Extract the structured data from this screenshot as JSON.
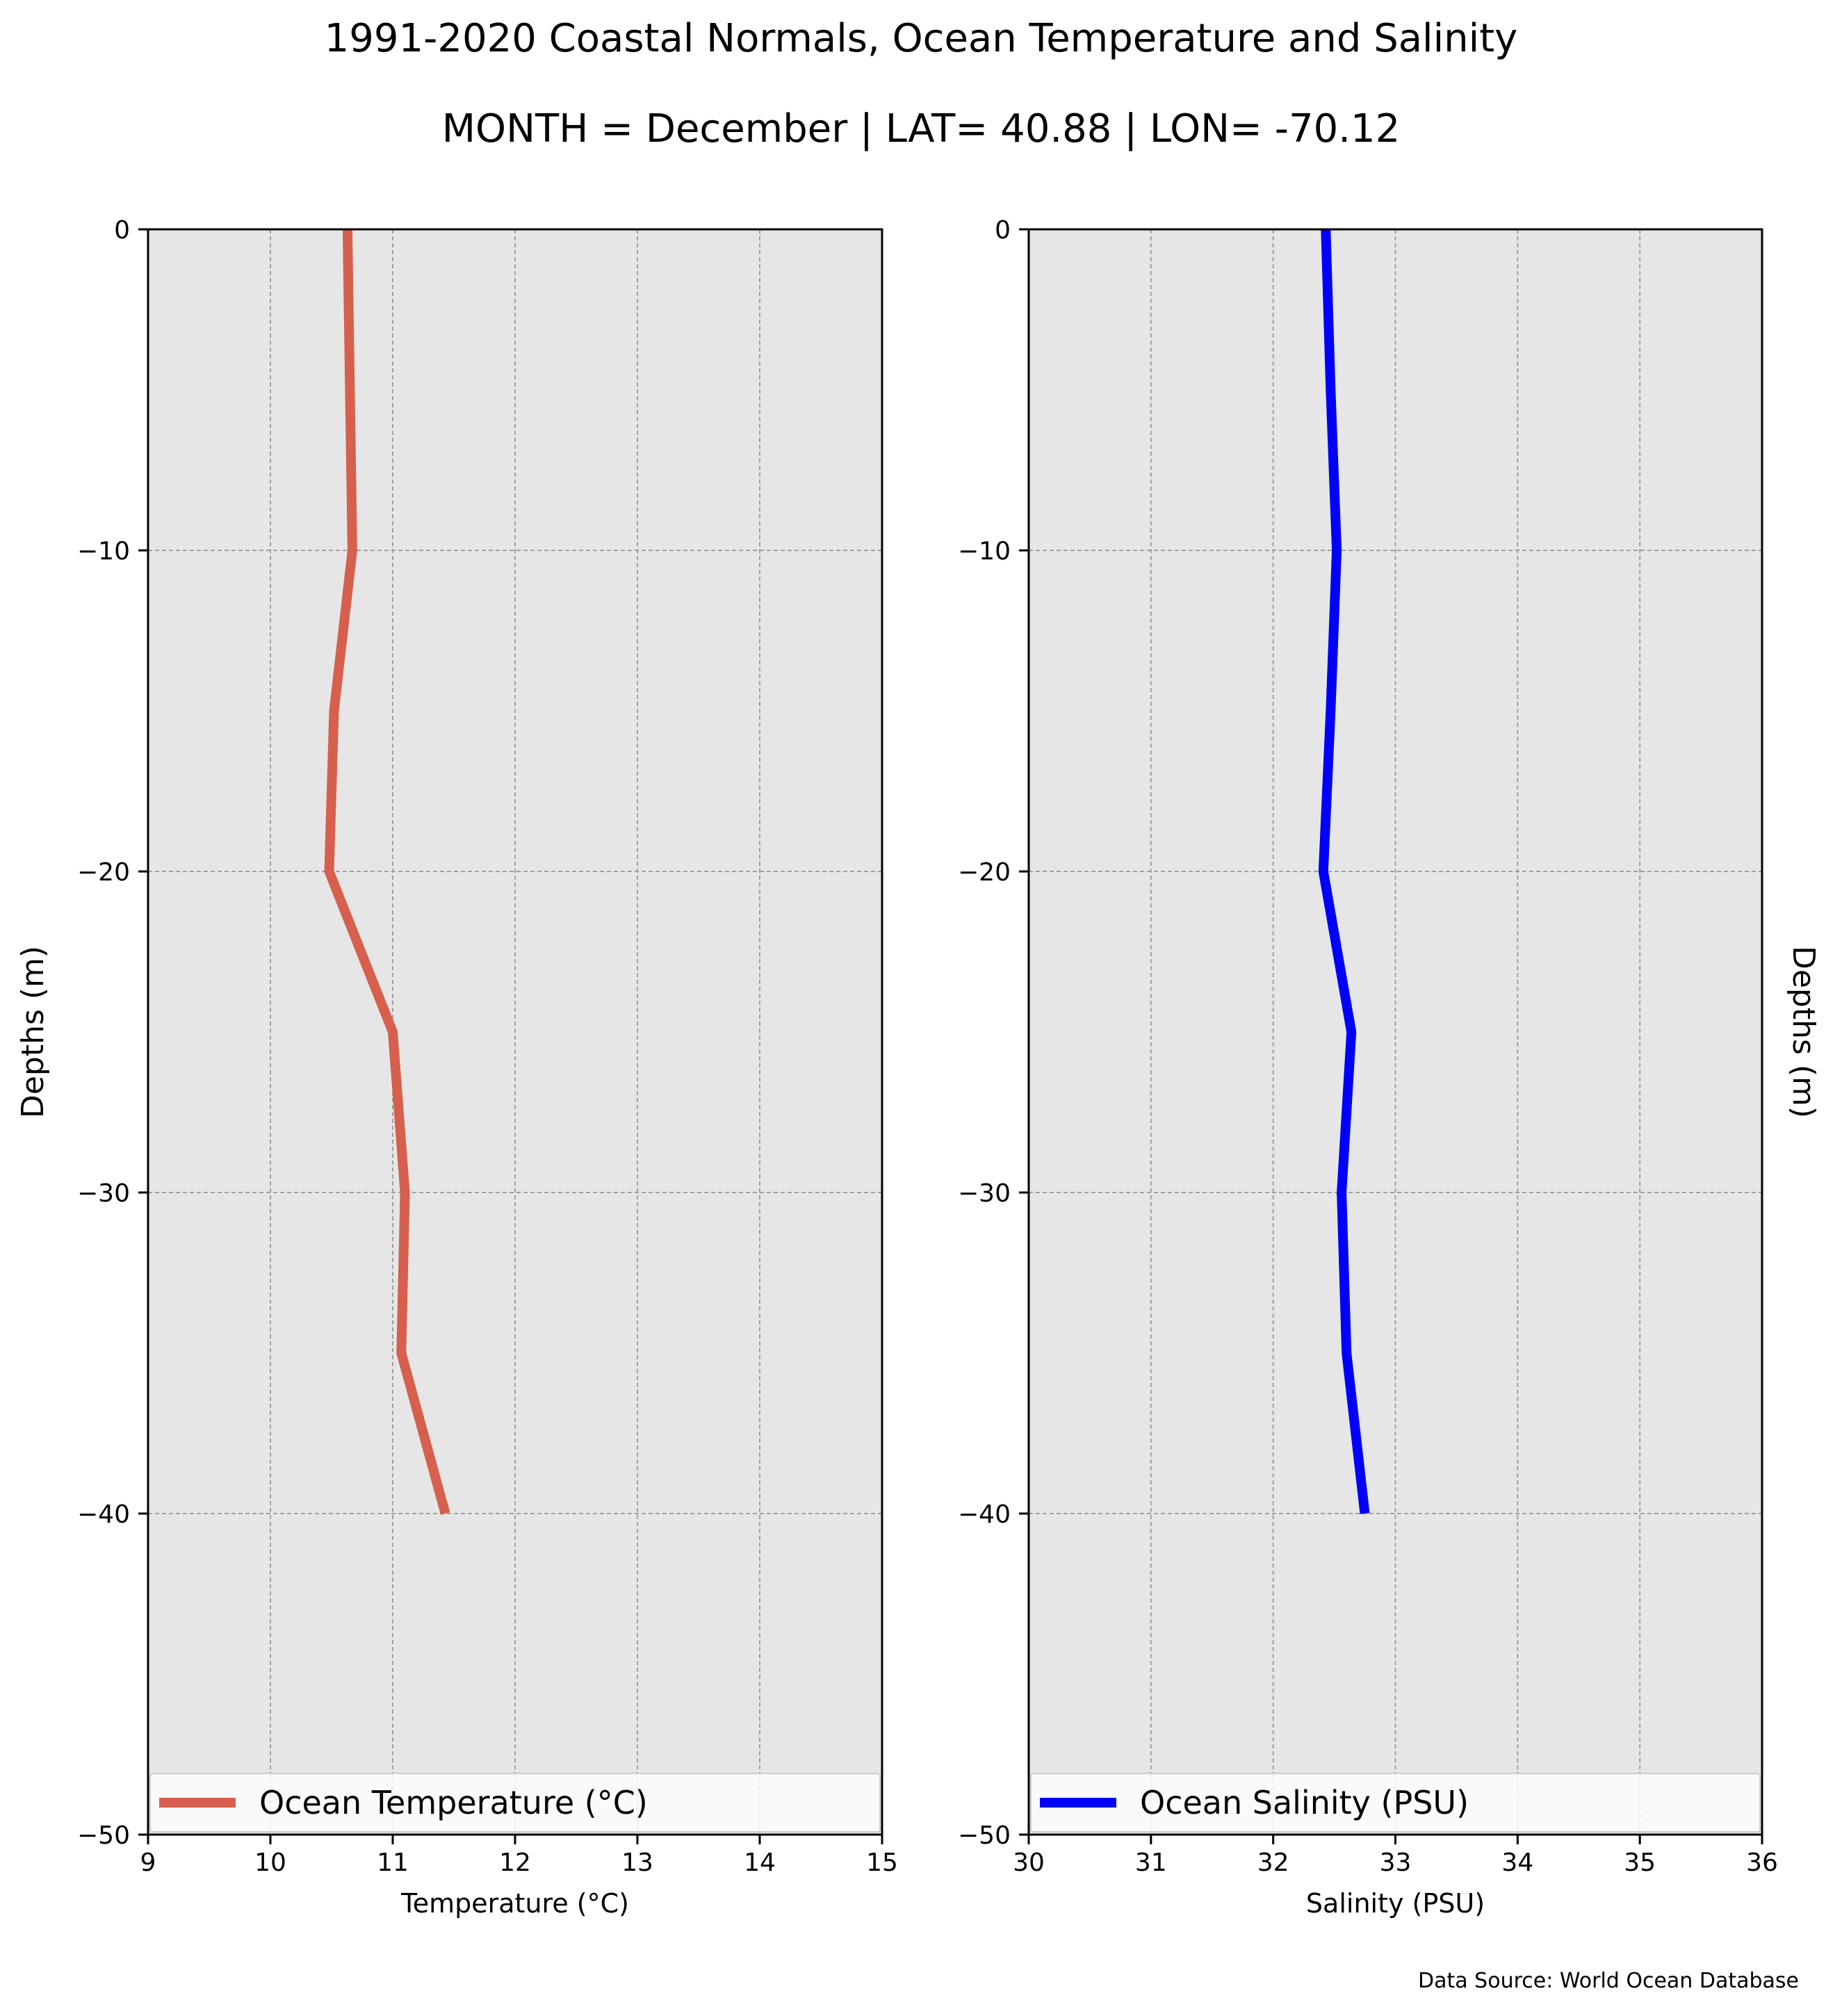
{
  "title": "1991-2020 Coastal Normals, Ocean Temperature and Salinity",
  "subtitle": "MONTH = December | LAT= 40.88 | LON= -70.12",
  "source_note": "Data Source: World Ocean Database",
  "chart_data": [
    {
      "type": "line",
      "xlabel": "Temperature (°C)",
      "ylabel": "Depths (m)",
      "xlim": [
        9,
        15
      ],
      "ylim": [
        -50,
        0
      ],
      "x_ticks": [
        9,
        10,
        11,
        12,
        13,
        14,
        15
      ],
      "y_ticks": [
        0,
        -10,
        -20,
        -30,
        -40,
        -50
      ],
      "grid": true,
      "background_color": "#e6e6e6",
      "legend_position": "bottom",
      "series": [
        {
          "name": "Ocean Temperature (°C)",
          "color": "#d6604d",
          "x": [
            10.63,
            10.67,
            10.52,
            10.48,
            11.0,
            11.1,
            11.07,
            11.43
          ],
          "y": [
            0,
            -10,
            -15,
            -20,
            -25,
            -30,
            -35,
            -40
          ]
        }
      ]
    },
    {
      "type": "line",
      "xlabel": "Salinity (PSU)",
      "ylabel": "Depths (m)",
      "xlim": [
        30,
        36
      ],
      "ylim": [
        -50,
        0
      ],
      "x_ticks": [
        30,
        31,
        32,
        33,
        34,
        35,
        36
      ],
      "y_ticks": [
        0,
        -10,
        -20,
        -30,
        -40,
        -50
      ],
      "grid": true,
      "background_color": "#e6e6e6",
      "legend_position": "bottom",
      "series": [
        {
          "name": "Ocean Salinity (PSU)",
          "color": "#0000ff",
          "x": [
            32.43,
            32.47,
            32.52,
            32.47,
            32.41,
            32.64,
            32.56,
            32.6,
            32.75
          ],
          "y": [
            0,
            -5,
            -10,
            -15,
            -20,
            -25,
            -30,
            -35,
            -40
          ]
        }
      ]
    }
  ]
}
